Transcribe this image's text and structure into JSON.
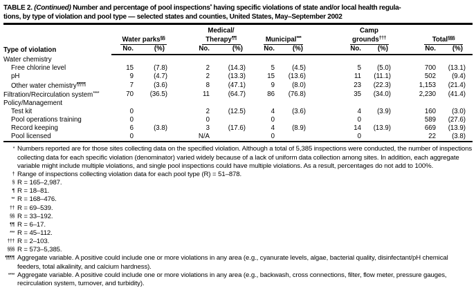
{
  "page": {
    "background": "#ffffff",
    "text_color": "#000000",
    "rule_color": "#000000"
  },
  "title": {
    "l1a": "TABLE 2. ",
    "l1b": "(Continued)",
    "l1c": " Number and percentage of pool inspections",
    "l1sup": "*",
    "l1d": " having specific violations of state and/or local health regula-",
    "l2": "tions, by type of violation and pool type — selected states and counties, United States, May–September 2002"
  },
  "table": {
    "row_header": "Type of violation",
    "sub_no": "No.",
    "sub_pct": "(%)",
    "col_groups": [
      {
        "l1": "",
        "l2": "Water parks",
        "sup": "§§"
      },
      {
        "l1": "Medical/",
        "l2": "Therapy",
        "sup": "¶¶"
      },
      {
        "l1": "",
        "l2": "Municipal",
        "sup": "***"
      },
      {
        "l1": "Camp",
        "l2": "grounds",
        "sup": "†††"
      },
      {
        "l1": "",
        "l2": "Total",
        "sup": "§§§"
      }
    ],
    "rows": [
      {
        "label": "Water chemistry",
        "sup": "",
        "type": "section",
        "cells": [
          "",
          "",
          "",
          "",
          "",
          "",
          "",
          "",
          "",
          ""
        ]
      },
      {
        "label": "Free chlorine level",
        "sup": "",
        "type": "item",
        "cells": [
          "15",
          "(7.8)",
          "2",
          "(14.3)",
          "5",
          "(4.5)",
          "5",
          "(5.0)",
          "700",
          "(13.1)"
        ]
      },
      {
        "label": "pH",
        "sup": "",
        "type": "item",
        "cells": [
          "9",
          "(4.7)",
          "2",
          "(13.3)",
          "15",
          "(13.6)",
          "11",
          "(11.1)",
          "502",
          "(9.4)"
        ]
      },
      {
        "label": "Other water chemistry",
        "sup": "¶¶¶¶",
        "type": "item",
        "cells": [
          "7",
          "(3.6)",
          "8",
          "(47.1)",
          "9",
          "(8.0)",
          "23",
          "(22.3)",
          "1,153",
          "(21.4)"
        ]
      },
      {
        "label": "Filtration/Recirculation system",
        "sup": "****",
        "type": "flush",
        "cells": [
          "70",
          "(36.5)",
          "11",
          "(64.7)",
          "86",
          "(76.8)",
          "35",
          "(34.0)",
          "2,230",
          "(41.4)"
        ]
      },
      {
        "label": "Policy/Management",
        "sup": "",
        "type": "section",
        "cells": [
          "",
          "",
          "",
          "",
          "",
          "",
          "",
          "",
          "",
          ""
        ]
      },
      {
        "label": "Test kit",
        "sup": "",
        "type": "item",
        "cells": [
          "0",
          "",
          "2",
          "(12.5)",
          "4",
          "(3.6)",
          "4",
          "(3.9)",
          "160",
          "(3.0)"
        ]
      },
      {
        "label": "Pool operations training",
        "sup": "",
        "type": "item",
        "cells": [
          "0",
          "",
          "0",
          "",
          "0",
          "",
          "0",
          "",
          "589",
          "(27.6)"
        ]
      },
      {
        "label": "Record keeping",
        "sup": "",
        "type": "item",
        "cells": [
          "6",
          "(3.8)",
          "3",
          "(17.6)",
          "4",
          "(8.9)",
          "14",
          "(13.9)",
          "669",
          "(13.9)"
        ]
      },
      {
        "label": "Pool licensed",
        "sup": "",
        "type": "item",
        "cells": [
          "0",
          "",
          "N/A",
          "",
          "0",
          "",
          "0",
          "",
          "22",
          "(3.8)"
        ]
      }
    ]
  },
  "footnotes": [
    {
      "marker": "*",
      "text": "Numbers reported are for those sites collecting data on the specified violation. Although a total of 5,385 inspections were conducted, the number of inspections collecting data for each specific violation (denominator) varied widely because of a lack of uniform data collection among sites. In addition, each aggregate variable might include multiple violations, and single pool inspections could have multiple violations. As a result, percentages do not add to 100%."
    },
    {
      "marker": "†",
      "text": "Range of inspections collecting violation data for each pool type (R) = 51–878."
    },
    {
      "marker": "§",
      "text": "R = 165–2,987."
    },
    {
      "marker": "¶",
      "text": "R = 18–81."
    },
    {
      "marker": "**",
      "text": "R = 168–476."
    },
    {
      "marker": "††",
      "text": "R = 69–539."
    },
    {
      "marker": "§§",
      "text": "R = 33–192."
    },
    {
      "marker": "¶¶",
      "text": "R = 6–17."
    },
    {
      "marker": "***",
      "text": "R = 45–112."
    },
    {
      "marker": "†††",
      "text": "R = 2–103."
    },
    {
      "marker": "§§§",
      "text": "R = 573–5,385."
    },
    {
      "marker": "¶¶¶¶",
      "text": "Aggregate variable. A positive could include one or more violations in any area (e.g., cyanurate levels, algae, bacterial quality, disinfectant/pH chemical feeders, total alkalinity, and calcium hardness)."
    },
    {
      "marker": "****",
      "text": "Aggregate variable. A positive could include one or more violations in any area (e.g., backwash, cross connections, filter, flow meter, pressure gauges, recirculation system, turnover, and turbidity)."
    }
  ]
}
